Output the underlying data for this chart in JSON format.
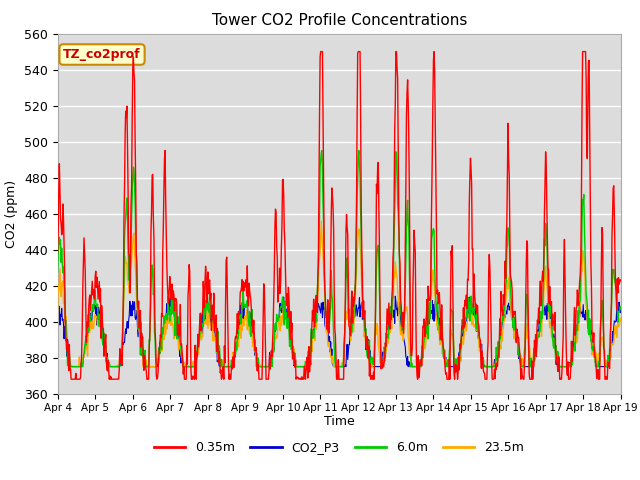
{
  "title": "Tower CO2 Profile Concentrations",
  "xlabel": "Time",
  "ylabel": "CO2 (ppm)",
  "ylim": [
    360,
    560
  ],
  "yticks": [
    360,
    380,
    400,
    420,
    440,
    460,
    480,
    500,
    520,
    540,
    560
  ],
  "xtick_labels": [
    "Apr 4",
    "Apr 5",
    "Apr 6",
    "Apr 7",
    "Apr 8",
    "Apr 9",
    "Apr 10",
    "Apr 11",
    "Apr 12",
    "Apr 13",
    "Apr 14",
    "Apr 15",
    "Apr 16",
    "Apr 17",
    "Apr 18",
    "Apr 19"
  ],
  "series_colors": {
    "0.35m": "#ff0000",
    "CO2_P3": "#0000cc",
    "6.0m": "#00cc00",
    "23.5m": "#ffaa00"
  },
  "label_box_text": "TZ_co2prof",
  "label_box_facecolor": "#ffffcc",
  "label_box_edgecolor": "#cc8800",
  "fig_facecolor": "#ffffff",
  "plot_bg_color": "#dcdcdc",
  "grid_color": "#ffffff",
  "n_points": 960
}
